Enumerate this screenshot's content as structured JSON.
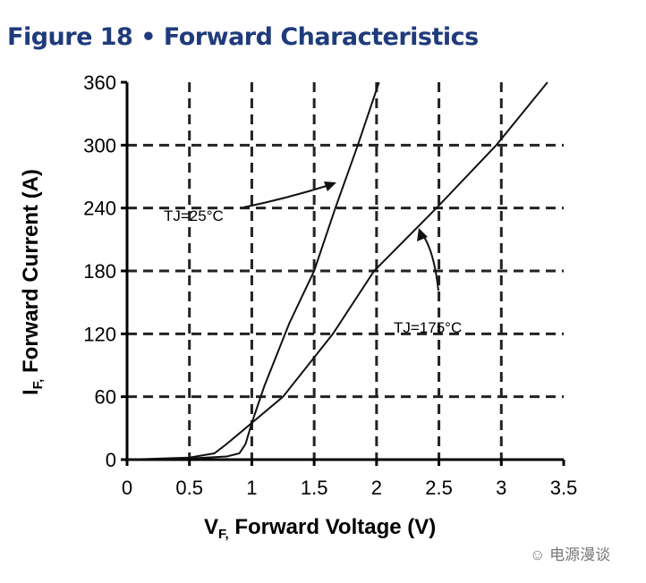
{
  "chart_data": {
    "type": "line",
    "title": "Figure 18 • Forward Characteristics",
    "xlabel": "VF, Forward Voltage (V)",
    "xlabel_main": "V",
    "xlabel_sub": "F,",
    "xlabel_rest": " Forward Voltage (V)",
    "ylabel_main": "I",
    "ylabel_sub": "F,",
    "ylabel_rest": " Forward Current (A)",
    "xlim": [
      0,
      3.5
    ],
    "ylim": [
      0,
      360
    ],
    "xticks": [
      "0",
      "0.5",
      "1",
      "1.5",
      "2",
      "2.5",
      "3",
      "3.5"
    ],
    "yticks": [
      "0",
      "60",
      "120",
      "180",
      "240",
      "300",
      "360"
    ],
    "grid": true,
    "series": [
      {
        "name": "TJ=25°C",
        "x": [
          0,
          0.5,
          0.8,
          0.9,
          0.95,
          1.0,
          1.1,
          1.3,
          1.5,
          1.67,
          1.85,
          2.02
        ],
        "y": [
          0,
          1,
          3,
          6,
          15,
          35,
          70,
          130,
          180,
          240,
          300,
          360
        ]
      },
      {
        "name": "TJ=175°C",
        "x": [
          0,
          0.5,
          0.7,
          0.8,
          0.9,
          1.0,
          1.25,
          1.65,
          1.98,
          2.48,
          2.96,
          3.37
        ],
        "y": [
          0,
          2,
          6,
          15,
          25,
          35,
          60,
          120,
          180,
          240,
          300,
          360
        ]
      }
    ]
  },
  "watermark": "电源漫谈"
}
